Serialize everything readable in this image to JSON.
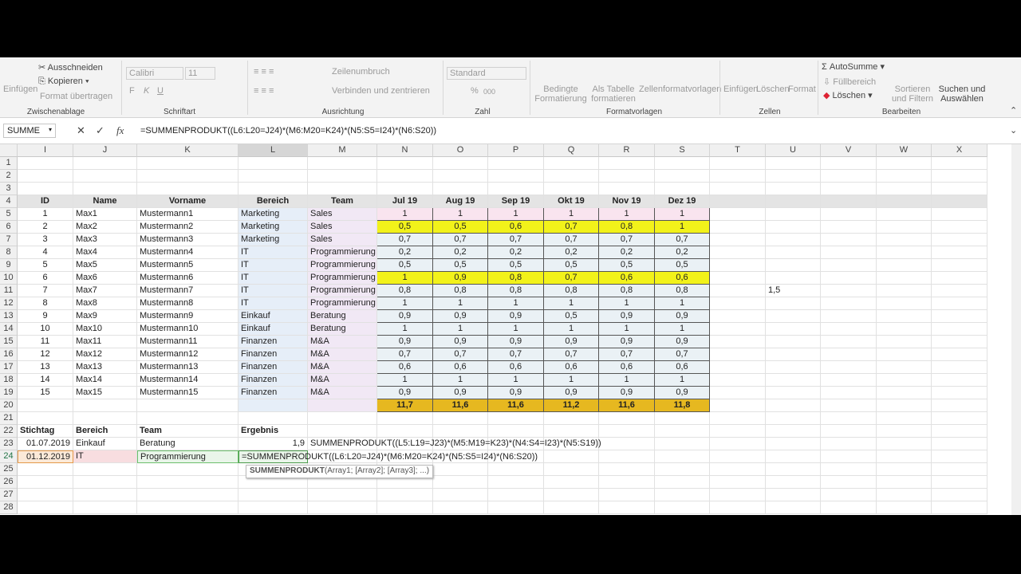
{
  "ribbon": {
    "clipboard": {
      "paste": "Einfügen",
      "cut": "Ausschneiden",
      "copy": "Kopieren",
      "format_painter": "Format übertragen",
      "group": "Zwischenablage"
    },
    "font": {
      "name": "Calibri",
      "size": "11",
      "bold": "F",
      "italic": "K",
      "underline": "U",
      "group": "Schriftart"
    },
    "alignment": {
      "wrap": "Zeilenumbruch",
      "merge": "Verbinden und zentrieren",
      "group": "Ausrichtung"
    },
    "number": {
      "format": "Standard",
      "percent": "%",
      "thousands": "000",
      "group": "Zahl"
    },
    "styles": {
      "conditional": "Bedingte Formatierung",
      "as_table": "Als Tabelle formatieren",
      "cell_styles": "Zellenformatvorlagen",
      "group": "Formatvorlagen"
    },
    "cells": {
      "insert": "Einfügen",
      "delete": "Löschen",
      "format": "Format",
      "group": "Zellen"
    },
    "editing": {
      "autosum": "AutoSumme",
      "fill": "Füllbereich",
      "clear": "Löschen",
      "sort": "Sortieren und Filtern",
      "find": "Suchen und Auswählen",
      "group": "Bearbeiten"
    }
  },
  "formula_bar": {
    "name_box": "SUMME",
    "formula": "=SUMMENPRODUKT((L6:L20=J24)*(M6:M20=K24)*(N5:S5=I24)*(N6:S20))"
  },
  "columns": [
    "I",
    "J",
    "K",
    "L",
    "M",
    "N",
    "O",
    "P",
    "Q",
    "R",
    "S",
    "T",
    "U",
    "V",
    "W",
    "X"
  ],
  "rows": {
    "4": {
      "I": "ID",
      "J": "Name",
      "K": "Vorname",
      "L": "Bereich",
      "M": "Team",
      "N": "Jul 19",
      "O": "Aug 19",
      "P": "Sep 19",
      "Q": "Okt 19",
      "R": "Nov 19",
      "S": "Dez 19"
    },
    "5": {
      "I": "1",
      "J": "Max1",
      "K": "Mustermann1",
      "L": "Marketing",
      "M": "Sales",
      "N": "1",
      "O": "1",
      "P": "1",
      "Q": "1",
      "R": "1",
      "S": "1"
    },
    "6": {
      "I": "2",
      "J": "Max2",
      "K": "Mustermann2",
      "L": "Marketing",
      "M": "Sales",
      "N": "0,5",
      "O": "0,5",
      "P": "0,6",
      "Q": "0,7",
      "R": "0,8",
      "S": "1"
    },
    "7": {
      "I": "3",
      "J": "Max3",
      "K": "Mustermann3",
      "L": "Marketing",
      "M": "Sales",
      "N": "0,7",
      "O": "0,7",
      "P": "0,7",
      "Q": "0,7",
      "R": "0,7",
      "S": "0,7"
    },
    "8": {
      "I": "4",
      "J": "Max4",
      "K": "Mustermann4",
      "L": "IT",
      "M": "Programmierung",
      "N": "0,2",
      "O": "0,2",
      "P": "0,2",
      "Q": "0,2",
      "R": "0,2",
      "S": "0,2"
    },
    "9": {
      "I": "5",
      "J": "Max5",
      "K": "Mustermann5",
      "L": "IT",
      "M": "Programmierung",
      "N": "0,5",
      "O": "0,5",
      "P": "0,5",
      "Q": "0,5",
      "R": "0,5",
      "S": "0,5"
    },
    "10": {
      "I": "6",
      "J": "Max6",
      "K": "Mustermann6",
      "L": "IT",
      "M": "Programmierung",
      "N": "1",
      "O": "0,9",
      "P": "0,8",
      "Q": "0,7",
      "R": "0,6",
      "S": "0,6"
    },
    "11": {
      "I": "7",
      "J": "Max7",
      "K": "Mustermann7",
      "L": "IT",
      "M": "Programmierung",
      "N": "0,8",
      "O": "0,8",
      "P": "0,8",
      "Q": "0,8",
      "R": "0,8",
      "S": "0,8",
      "U": "1,5"
    },
    "12": {
      "I": "8",
      "J": "Max8",
      "K": "Mustermann8",
      "L": "IT",
      "M": "Programmierung",
      "N": "1",
      "O": "1",
      "P": "1",
      "Q": "1",
      "R": "1",
      "S": "1"
    },
    "13": {
      "I": "9",
      "J": "Max9",
      "K": "Mustermann9",
      "L": "Einkauf",
      "M": "Beratung",
      "N": "0,9",
      "O": "0,9",
      "P": "0,9",
      "Q": "0,5",
      "R": "0,9",
      "S": "0,9"
    },
    "14": {
      "I": "10",
      "J": "Max10",
      "K": "Mustermann10",
      "L": "Einkauf",
      "M": "Beratung",
      "N": "1",
      "O": "1",
      "P": "1",
      "Q": "1",
      "R": "1",
      "S": "1"
    },
    "15": {
      "I": "11",
      "J": "Max11",
      "K": "Mustermann11",
      "L": "Finanzen",
      "M": "M&A",
      "N": "0,9",
      "O": "0,9",
      "P": "0,9",
      "Q": "0,9",
      "R": "0,9",
      "S": "0,9"
    },
    "16": {
      "I": "12",
      "J": "Max12",
      "K": "Mustermann12",
      "L": "Finanzen",
      "M": "M&A",
      "N": "0,7",
      "O": "0,7",
      "P": "0,7",
      "Q": "0,7",
      "R": "0,7",
      "S": "0,7"
    },
    "17": {
      "I": "13",
      "J": "Max13",
      "K": "Mustermann13",
      "L": "Finanzen",
      "M": "M&A",
      "N": "0,6",
      "O": "0,6",
      "P": "0,6",
      "Q": "0,6",
      "R": "0,6",
      "S": "0,6"
    },
    "18": {
      "I": "14",
      "J": "Max14",
      "K": "Mustermann14",
      "L": "Finanzen",
      "M": "M&A",
      "N": "1",
      "O": "1",
      "P": "1",
      "Q": "1",
      "R": "1",
      "S": "1"
    },
    "19": {
      "I": "15",
      "J": "Max15",
      "K": "Mustermann15",
      "L": "Finanzen",
      "M": "M&A",
      "N": "0,9",
      "O": "0,9",
      "P": "0,9",
      "Q": "0,9",
      "R": "0,9",
      "S": "0,9"
    },
    "20": {
      "N": "11,7",
      "O": "11,6",
      "P": "11,6",
      "Q": "11,2",
      "R": "11,6",
      "S": "11,8"
    },
    "22": {
      "I": "Stichtag",
      "J": "Bereich",
      "K": "Team",
      "L": "Ergebnis"
    },
    "23": {
      "I": "01.07.2019",
      "J": "Einkauf",
      "K": "Beratung",
      "L": "1,9",
      "M": "SUMMENPRODUKT((L5:L19=J23)*(M5:M19=K23)*(N4:S4=I23)*(N5:S19))"
    },
    "24": {
      "I": "01.12.2019",
      "J": "IT",
      "K": "Programmierung",
      "L": "=SUMMENPRODUKT((L6:L20=J24)*(M6:M20=K24)*(N5:S5=I24)*(N6:S20))"
    }
  },
  "tooltip": {
    "func": "SUMMENPRODUKT",
    "args": "(Array1; [Array2]; [Array3]; ...)"
  },
  "colors": {
    "yellow": "#f2f21a",
    "gold": "#e6b820",
    "pink": "#f9e4ef",
    "blue": "#eaf1f5",
    "l_fill": "#e6eef8",
    "m_fill": "#f1e8f5"
  }
}
